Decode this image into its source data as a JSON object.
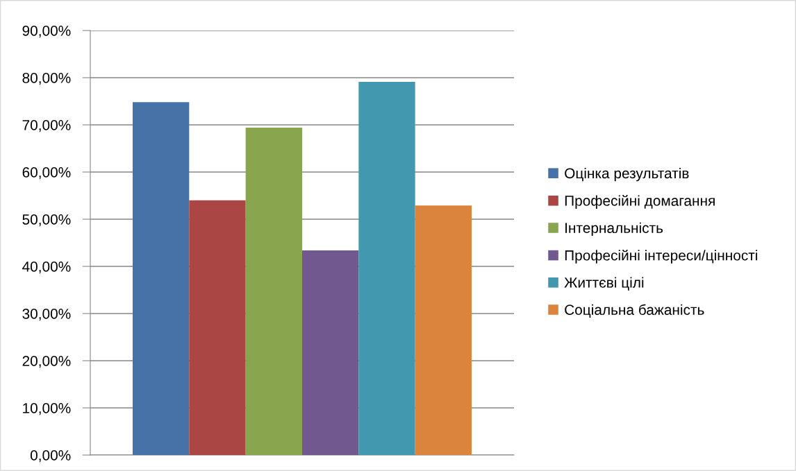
{
  "chart_data": {
    "type": "bar",
    "categories": [
      null
    ],
    "series": [
      {
        "name": "Оцінка результатів",
        "color": "#4672a8",
        "values": [
          74.8
        ]
      },
      {
        "name": "Професійні домагання",
        "color": "#aa4644",
        "values": [
          54.0
        ]
      },
      {
        "name": "Інтернальність",
        "color": "#89a54e",
        "values": [
          69.4
        ]
      },
      {
        "name": "Професійні інтереси/цінності",
        "color": "#71588f",
        "values": [
          43.4
        ]
      },
      {
        "name": "Життєві цілі",
        "color": "#4198af",
        "values": [
          79.1
        ]
      },
      {
        "name": "Соціальна бажаність",
        "color": "#db843d",
        "values": [
          52.9
        ]
      }
    ],
    "ylim": [
      0,
      90
    ],
    "yticks": [
      {
        "value": 0,
        "label": "0,00%"
      },
      {
        "value": 10,
        "label": "10,00%"
      },
      {
        "value": 20,
        "label": "20,00%"
      },
      {
        "value": 30,
        "label": "30,00%"
      },
      {
        "value": 40,
        "label": "40,00%"
      },
      {
        "value": 50,
        "label": "50,00%"
      },
      {
        "value": 60,
        "label": "60,00%"
      },
      {
        "value": 70,
        "label": "70,00%"
      },
      {
        "value": 80,
        "label": "80,00%"
      },
      {
        "value": 90,
        "label": "90,00%"
      }
    ],
    "grid": "y",
    "legend": "right"
  }
}
